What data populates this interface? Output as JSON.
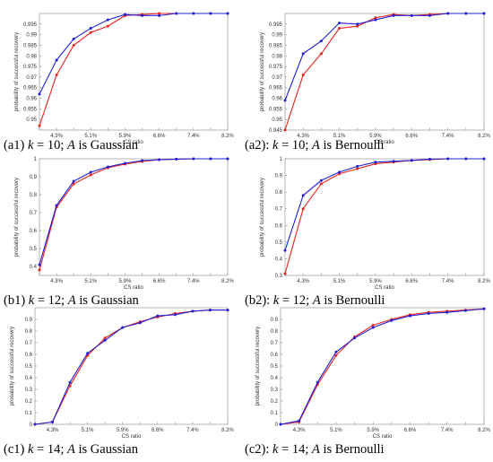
{
  "chart_data": [
    {
      "type": "line",
      "caption": "(a1) k = 10; A is Gaussian",
      "caption_prefix": "(a1) ",
      "caption_k": "k",
      "caption_k_value": " = 10; ",
      "caption_A": "A",
      "caption_suffix": " is Gaussian",
      "xlabel": "CS ratio",
      "ylabel": "probability of successful recovery",
      "categories": [
        "",
        "4.3%",
        "",
        "5.1%",
        "",
        "5.9%",
        "",
        "6.6%",
        "",
        "7.4%",
        "",
        "8.2%"
      ],
      "ylim": [
        0.945,
        1.0
      ],
      "yticks": [
        0.95,
        0.955,
        0.96,
        0.965,
        0.97,
        0.975,
        0.98,
        0.985,
        0.99,
        0.995
      ],
      "ytick_labels": [
        "0.95",
        "0.955",
        "0.96",
        "0.965",
        "0.97",
        "0.975",
        "0.98",
        "0.985",
        "0.99",
        "0.995"
      ],
      "series": [
        {
          "color": "#e8221c",
          "values": [
            0.947,
            0.971,
            0.985,
            0.991,
            0.994,
            0.999,
            0.9995,
            1.0,
            1.0,
            1.0,
            1.0,
            1.0
          ]
        },
        {
          "color": "#1f1fd8",
          "values": [
            0.962,
            0.978,
            0.988,
            0.993,
            0.997,
            0.9995,
            0.999,
            0.999,
            1.0,
            1.0,
            1.0,
            1.0
          ]
        }
      ]
    },
    {
      "type": "line",
      "caption": "(a2): k = 10; A is Bernoulli",
      "caption_prefix": "(a2): ",
      "caption_k": "k",
      "caption_k_value": " = 10; ",
      "caption_A": "A",
      "caption_suffix": " is Bernoulli",
      "xlabel": "CS ratio",
      "ylabel": "probability of successful recovery",
      "categories": [
        "",
        "4.3%",
        "",
        "5.1%",
        "",
        "5.9%",
        "",
        "6.6%",
        "",
        "7.4%",
        "",
        "8.2%"
      ],
      "ylim": [
        0.945,
        1.0
      ],
      "yticks": [
        0.945,
        0.95,
        0.955,
        0.96,
        0.965,
        0.97,
        0.975,
        0.98,
        0.985,
        0.99,
        0.995
      ],
      "ytick_labels": [
        "0.945",
        "0.95",
        "0.955",
        "0.96",
        "0.965",
        "0.97",
        "0.975",
        "0.98",
        "0.985",
        "0.99",
        "0.995"
      ],
      "series": [
        {
          "color": "#e8221c",
          "values": [
            0.945,
            0.971,
            0.981,
            0.993,
            0.994,
            0.998,
            0.9995,
            0.999,
            0.9995,
            1.0,
            1.0,
            1.0
          ]
        },
        {
          "color": "#1f1fd8",
          "values": [
            0.959,
            0.981,
            0.987,
            0.9955,
            0.995,
            0.997,
            0.999,
            0.999,
            0.999,
            1.0,
            1.0,
            1.0
          ]
        }
      ]
    },
    {
      "type": "line",
      "caption": "(b1) k = 12; A is Gaussian",
      "caption_prefix": "(b1) ",
      "caption_k": "k",
      "caption_k_value": " = 12; ",
      "caption_A": "A",
      "caption_suffix": " is Gaussian",
      "xlabel": "CS ratio",
      "ylabel": "probability of successful recovery",
      "categories": [
        "",
        "4.3%",
        "",
        "5.1%",
        "",
        "5.9%",
        "",
        "6.6%",
        "",
        "7.4%",
        "",
        "8.2%"
      ],
      "ylim": [
        0.35,
        1.0
      ],
      "yticks": [
        0.4,
        0.5,
        0.6,
        0.7,
        0.8,
        0.9,
        1.0
      ],
      "ytick_labels": [
        "0.4",
        "0.5",
        "0.6",
        "0.7",
        "0.8",
        "0.9",
        "1"
      ],
      "series": [
        {
          "color": "#e8221c",
          "values": [
            0.38,
            0.73,
            0.86,
            0.91,
            0.95,
            0.97,
            0.985,
            0.995,
            0.998,
            1.0,
            1.0,
            1.0
          ]
        },
        {
          "color": "#1f1fd8",
          "values": [
            0.41,
            0.74,
            0.875,
            0.925,
            0.955,
            0.975,
            0.99,
            0.995,
            0.998,
            1.0,
            1.0,
            1.0
          ]
        }
      ]
    },
    {
      "type": "line",
      "caption": "(b2): k = 12; A is Bernoulli",
      "caption_prefix": "(b2): ",
      "caption_k": "k",
      "caption_k_value": " = 12; ",
      "caption_A": "A",
      "caption_suffix": " is Bernoulli",
      "xlabel": "CS ratio",
      "ylabel": "probability of successful recovery",
      "categories": [
        "",
        "4.3%",
        "",
        "5.1%",
        "",
        "5.9%",
        "",
        "6.6%",
        "",
        "7.4%",
        "",
        "8.2%"
      ],
      "ylim": [
        0.3,
        1.0
      ],
      "yticks": [
        0.3,
        0.4,
        0.5,
        0.6,
        0.7,
        0.8,
        0.9,
        1.0
      ],
      "ytick_labels": [
        "0.3",
        "0.4",
        "0.5",
        "0.6",
        "0.7",
        "0.8",
        "0.9",
        "1"
      ],
      "series": [
        {
          "color": "#e8221c",
          "values": [
            0.31,
            0.7,
            0.85,
            0.91,
            0.94,
            0.97,
            0.98,
            0.99,
            0.995,
            1.0,
            1.0,
            1.0
          ]
        },
        {
          "color": "#1f1fd8",
          "values": [
            0.45,
            0.78,
            0.87,
            0.92,
            0.955,
            0.98,
            0.985,
            0.99,
            0.998,
            1.0,
            1.0,
            1.0
          ]
        }
      ]
    },
    {
      "type": "line",
      "caption": "(c1) k = 14; A is Gaussian",
      "caption_prefix": "(c1) ",
      "caption_k": "k",
      "caption_k_value": " = 14; ",
      "caption_A": "A",
      "caption_suffix": " is Gaussian",
      "xlabel": "CS ratio",
      "ylabel": "probability of successful recovery",
      "categories": [
        "",
        "4.3%",
        "",
        "5.1%",
        "",
        "5.9%",
        "",
        "6.6%",
        "",
        "7.4%",
        "",
        "8.2%"
      ],
      "ylim": [
        0.0,
        1.0
      ],
      "yticks": [
        0.0,
        0.1,
        0.2,
        0.3,
        0.4,
        0.5,
        0.6,
        0.7,
        0.8,
        0.9
      ],
      "ytick_labels": [
        "0",
        "0.1",
        "0.2",
        "0.3",
        "0.4",
        "0.5",
        "0.6",
        "0.7",
        "0.8",
        "0.9"
      ],
      "series": [
        {
          "color": "#e8221c",
          "values": [
            0.0,
            0.02,
            0.33,
            0.59,
            0.74,
            0.83,
            0.88,
            0.92,
            0.95,
            0.97,
            0.98,
            0.98
          ]
        },
        {
          "color": "#1f1fd8",
          "values": [
            0.0,
            0.02,
            0.36,
            0.61,
            0.72,
            0.83,
            0.87,
            0.93,
            0.94,
            0.97,
            0.98,
            0.98
          ]
        }
      ]
    },
    {
      "type": "line",
      "caption": "(c2): k = 14; A is Bernoulli",
      "caption_prefix": "(c2): ",
      "caption_k": "k",
      "caption_k_value": " = 14; ",
      "caption_A": "A",
      "caption_suffix": " is Bernoulli",
      "xlabel": "CS ratio",
      "ylabel": "probability of successful recovery",
      "categories": [
        "",
        "4.3%",
        "",
        "5.1%",
        "",
        "5.9%",
        "",
        "6.6%",
        "",
        "7.4%",
        "",
        "8.2%"
      ],
      "ylim": [
        0.0,
        1.0
      ],
      "yticks": [
        0.0,
        0.1,
        0.2,
        0.3,
        0.4,
        0.5,
        0.6,
        0.7,
        0.8,
        0.9
      ],
      "ytick_labels": [
        "0",
        "0.1",
        "0.2",
        "0.3",
        "0.4",
        "0.5",
        "0.6",
        "0.7",
        "0.8",
        "0.9"
      ],
      "series": [
        {
          "color": "#e8221c",
          "values": [
            0.0,
            0.02,
            0.34,
            0.59,
            0.75,
            0.85,
            0.9,
            0.94,
            0.96,
            0.97,
            0.98,
            0.99
          ]
        },
        {
          "color": "#1f1fd8",
          "values": [
            0.0,
            0.03,
            0.36,
            0.62,
            0.74,
            0.83,
            0.89,
            0.93,
            0.95,
            0.96,
            0.975,
            0.99
          ]
        }
      ]
    }
  ]
}
